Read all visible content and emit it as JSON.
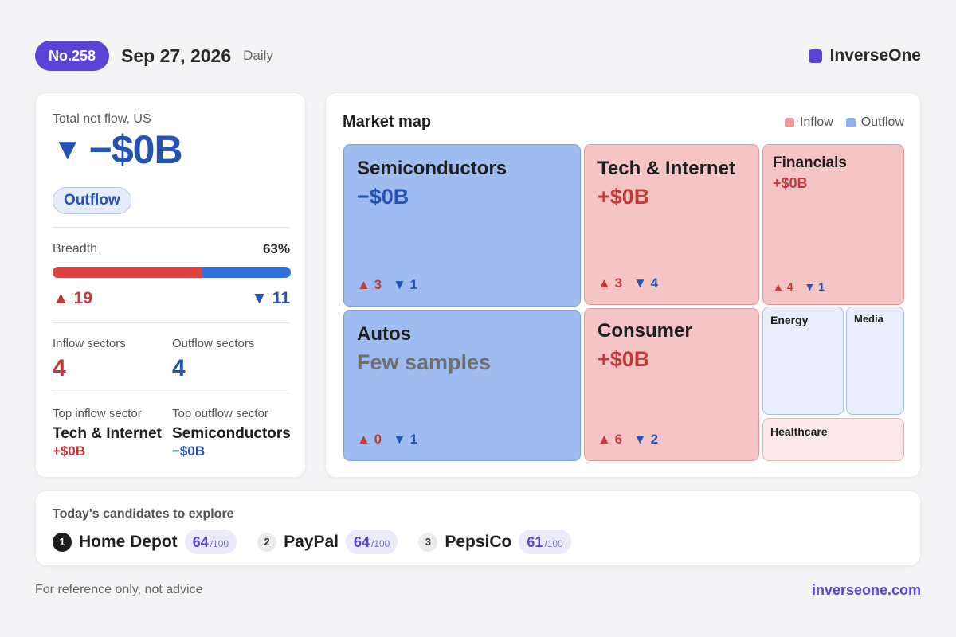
{
  "header": {
    "issue": "No.258",
    "date": "Sep 27, 2026",
    "frequency": "Daily",
    "brand": "InverseOne",
    "brand_color": "#5a44d6"
  },
  "summary": {
    "title": "Total net flow, US",
    "direction_icon": "triangle-down-icon",
    "net_flow": "−$0B",
    "flow_label": "Outflow",
    "breadth_label": "Breadth",
    "breadth_pct": "63%",
    "breadth_fraction": 0.63,
    "up_count": "19",
    "down_count": "11",
    "inflow_sectors_label": "Inflow sectors",
    "inflow_sectors": "4",
    "outflow_sectors_label": "Outflow sectors",
    "outflow_sectors": "4",
    "top_inflow_label": "Top inflow sector",
    "top_inflow_name": "Tech & Internet",
    "top_inflow_value": "+$0B",
    "top_outflow_label": "Top outflow sector",
    "top_outflow_name": "Semiconductors",
    "top_outflow_value": "−$0B"
  },
  "map": {
    "title": "Market map",
    "legend_inflow": "Inflow",
    "legend_outflow": "Outflow",
    "inflow_color": "#f5c5c5",
    "outflow_color": "#9fbcf1",
    "tiles": [
      {
        "name": "Semiconductors",
        "value": "−$0B",
        "up": "3",
        "down": "1",
        "flow": "outflow"
      },
      {
        "name": "Tech & Internet",
        "value": "+$0B",
        "up": "3",
        "down": "4",
        "flow": "inflow"
      },
      {
        "name": "Financials",
        "value": "+$0B",
        "up": "4",
        "down": "1",
        "flow": "inflow"
      },
      {
        "name": "Autos",
        "value": "Few samples",
        "up": "0",
        "down": "1",
        "flow": "outflow"
      },
      {
        "name": "Consumer",
        "value": "+$0B",
        "up": "6",
        "down": "2",
        "flow": "inflow"
      },
      {
        "name": "Energy",
        "flow": "outflow-light"
      },
      {
        "name": "Media",
        "flow": "outflow-light"
      },
      {
        "name": "Healthcare",
        "flow": "inflow-light"
      }
    ]
  },
  "candidates": {
    "title": "Today's candidates to explore",
    "items": [
      {
        "rank": "1",
        "name": "Home Depot",
        "score": "64",
        "max": "/100"
      },
      {
        "rank": "2",
        "name": "PayPal",
        "score": "64",
        "max": "/100"
      },
      {
        "rank": "3",
        "name": "PepsiCo",
        "score": "61",
        "max": "/100"
      }
    ]
  },
  "footer": {
    "disclaimer": "For reference only, not advice",
    "site": "inverseone.com"
  }
}
